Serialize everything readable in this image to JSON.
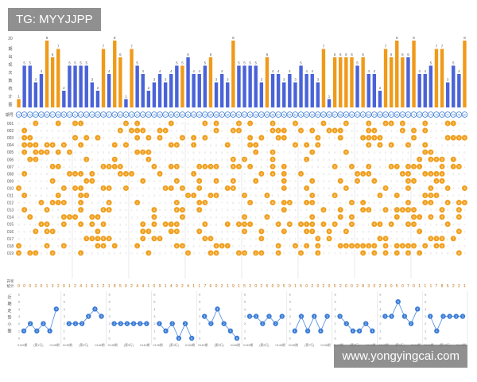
{
  "watermark_top": "TG: MYYJJPP",
  "watermark_bottom": "www.yongyingcai.com",
  "colors": {
    "bar_blue": "#4a63d8",
    "bar_orange": "#f09a1a",
    "ball_orange": "#f0a020",
    "ball_blue": "#3a7bd5",
    "faint_digit": "#d6d6d6",
    "grid": "#dddddd",
    "line": "#4a8ae0"
  },
  "chart_data": [
    {
      "type": "bar",
      "ylabel": "20\n期\n出\n现\n次\n数\n统\n计\n图",
      "y_axis_value": "20",
      "categories": [
        "001",
        "002",
        "003",
        "004",
        "005",
        "006",
        "007",
        "008",
        "009",
        "010",
        "011",
        "012",
        "013",
        "014",
        "015",
        "016",
        "017",
        "018",
        "019",
        "020",
        "021",
        "022",
        "023",
        "024",
        "025",
        "026",
        "027",
        "028",
        "029",
        "030",
        "031",
        "032",
        "033",
        "034",
        "035",
        "036",
        "037",
        "038",
        "039",
        "040",
        "041",
        "042",
        "043",
        "044",
        "045",
        "046",
        "047",
        "048",
        "049",
        "050",
        "051",
        "052",
        "053",
        "054",
        "055",
        "056",
        "057",
        "058",
        "059",
        "060",
        "061",
        "062",
        "063",
        "064",
        "065",
        "066",
        "067",
        "068",
        "069",
        "070",
        "071",
        "072",
        "073",
        "074",
        "075",
        "076",
        "077",
        "078",
        "079",
        "080"
      ],
      "values": [
        1,
        5,
        5,
        3,
        4,
        8,
        6,
        7,
        2,
        5,
        5,
        5,
        5,
        3,
        2,
        7,
        4,
        8,
        6,
        1,
        7,
        5,
        4,
        2,
        3,
        4,
        3,
        4,
        5,
        5,
        6,
        4,
        4,
        5,
        6,
        3,
        4,
        3,
        8,
        5,
        5,
        5,
        5,
        3,
        6,
        4,
        4,
        3,
        4,
        3,
        5,
        4,
        4,
        3,
        7,
        1,
        6,
        6,
        6,
        6,
        5,
        6,
        4,
        4,
        2,
        7,
        6,
        8,
        6,
        6,
        8,
        4,
        4,
        5,
        7,
        7,
        3,
        5,
        4,
        8
      ],
      "highlight": [
        "orange",
        "blue",
        "blue",
        "blue",
        "blue",
        "orange",
        "orange",
        "orange",
        "blue",
        "blue",
        "blue",
        "blue",
        "blue",
        "blue",
        "blue",
        "orange",
        "blue",
        "orange",
        "orange",
        "blue",
        "orange",
        "blue",
        "blue",
        "blue",
        "blue",
        "blue",
        "blue",
        "blue",
        "blue",
        "orange",
        "blue",
        "blue",
        "blue",
        "blue",
        "orange",
        "blue",
        "blue",
        "blue",
        "orange",
        "blue",
        "blue",
        "blue",
        "blue",
        "blue",
        "orange",
        "blue",
        "blue",
        "blue",
        "blue",
        "blue",
        "blue",
        "blue",
        "blue",
        "blue",
        "orange",
        "blue",
        "orange",
        "orange",
        "orange",
        "orange",
        "blue",
        "orange",
        "blue",
        "blue",
        "blue",
        "orange",
        "orange",
        "orange",
        "orange",
        "blue",
        "orange",
        "blue",
        "blue",
        "blue",
        "orange",
        "orange",
        "blue",
        "blue",
        "blue",
        "orange"
      ],
      "row_label": "期号"
    },
    {
      "type": "table",
      "rows": [
        "001",
        "002",
        "003",
        "004",
        "005",
        "006",
        "007",
        "008",
        "009",
        "010",
        "011",
        "012",
        "013",
        "014",
        "015",
        "016",
        "017",
        "018",
        "019"
      ],
      "columns": 80,
      "cell": "lottery ball grid: orange ball = drawn number, faint digit = miss count",
      "sum_row_label": "开奖\n统计",
      "sum_row": [
        0,
        0,
        0,
        3,
        0,
        1,
        3,
        2,
        0,
        1,
        2,
        4,
        1,
        6,
        1,
        2,
        1,
        8,
        5,
        0,
        2,
        4,
        4,
        1,
        0,
        9,
        1,
        4,
        9,
        2,
        4,
        1,
        1,
        7,
        6,
        0,
        2,
        1,
        9,
        1,
        5,
        2,
        0,
        2,
        5,
        0,
        0,
        5,
        0,
        1,
        5,
        0,
        2,
        0,
        2,
        0,
        5,
        2,
        0,
        0,
        2,
        8,
        3,
        0,
        2,
        9,
        0,
        5,
        0,
        7,
        0,
        1,
        1,
        1,
        7,
        8,
        5,
        2,
        2,
        1
      ]
    },
    {
      "type": "line",
      "ylabel": "近\n期\n走\n势\n小\n图",
      "ylim": [
        0,
        6
      ],
      "yticks": [
        0,
        1,
        2,
        3,
        4,
        5,
        6
      ],
      "panels": [
        {
          "values": [
            1,
            2,
            1,
            2,
            1,
            4
          ],
          "x_label_left": "0145期",
          "x_label_mid": "(第1行)",
          "x_label_right": "0146期"
        },
        {
          "values": [
            2,
            2,
            2,
            3,
            4,
            3
          ],
          "x_label_left": "0145期",
          "x_label_mid": "(第2行)",
          "x_label_right": "0146期"
        },
        {
          "values": [
            2,
            2,
            2,
            2,
            2,
            2
          ],
          "x_label_left": "0145期",
          "x_label_mid": "(第3行)",
          "x_label_right": "0146期"
        },
        {
          "values": [
            2,
            1,
            2,
            0,
            2,
            0
          ],
          "x_label_left": "0145期",
          "x_label_mid": "(第4行)",
          "x_label_right": "0146期"
        },
        {
          "values": [
            3,
            2,
            4,
            2,
            1,
            0
          ],
          "x_label_left": "0145期",
          "x_label_mid": "(第5行)",
          "x_label_right": "0146期"
        },
        {
          "values": [
            3,
            3,
            2,
            3,
            2,
            3
          ],
          "x_label_left": "0145期",
          "x_label_mid": "(第6行)",
          "x_label_right": "0146期"
        },
        {
          "values": [
            1,
            3,
            1,
            3,
            1,
            3
          ],
          "x_label_left": "0145期",
          "x_label_mid": "(第7行)",
          "x_label_right": "0146期"
        },
        {
          "values": [
            3,
            2,
            1,
            1,
            2,
            1
          ],
          "x_label_left": "0145期",
          "x_label_mid": "(第8行)",
          "x_label_right": "0146期"
        },
        {
          "values": [
            3,
            3,
            5,
            3,
            2,
            4
          ],
          "x_label_left": "0145期",
          "x_label_mid": "(第9行)",
          "x_label_right": "0146期"
        },
        {
          "values": [
            3,
            1,
            3,
            3,
            3,
            3
          ],
          "x_label_left": "0145期",
          "x_label_mid": "(第10行)",
          "x_label_right": "0146期"
        }
      ]
    }
  ]
}
